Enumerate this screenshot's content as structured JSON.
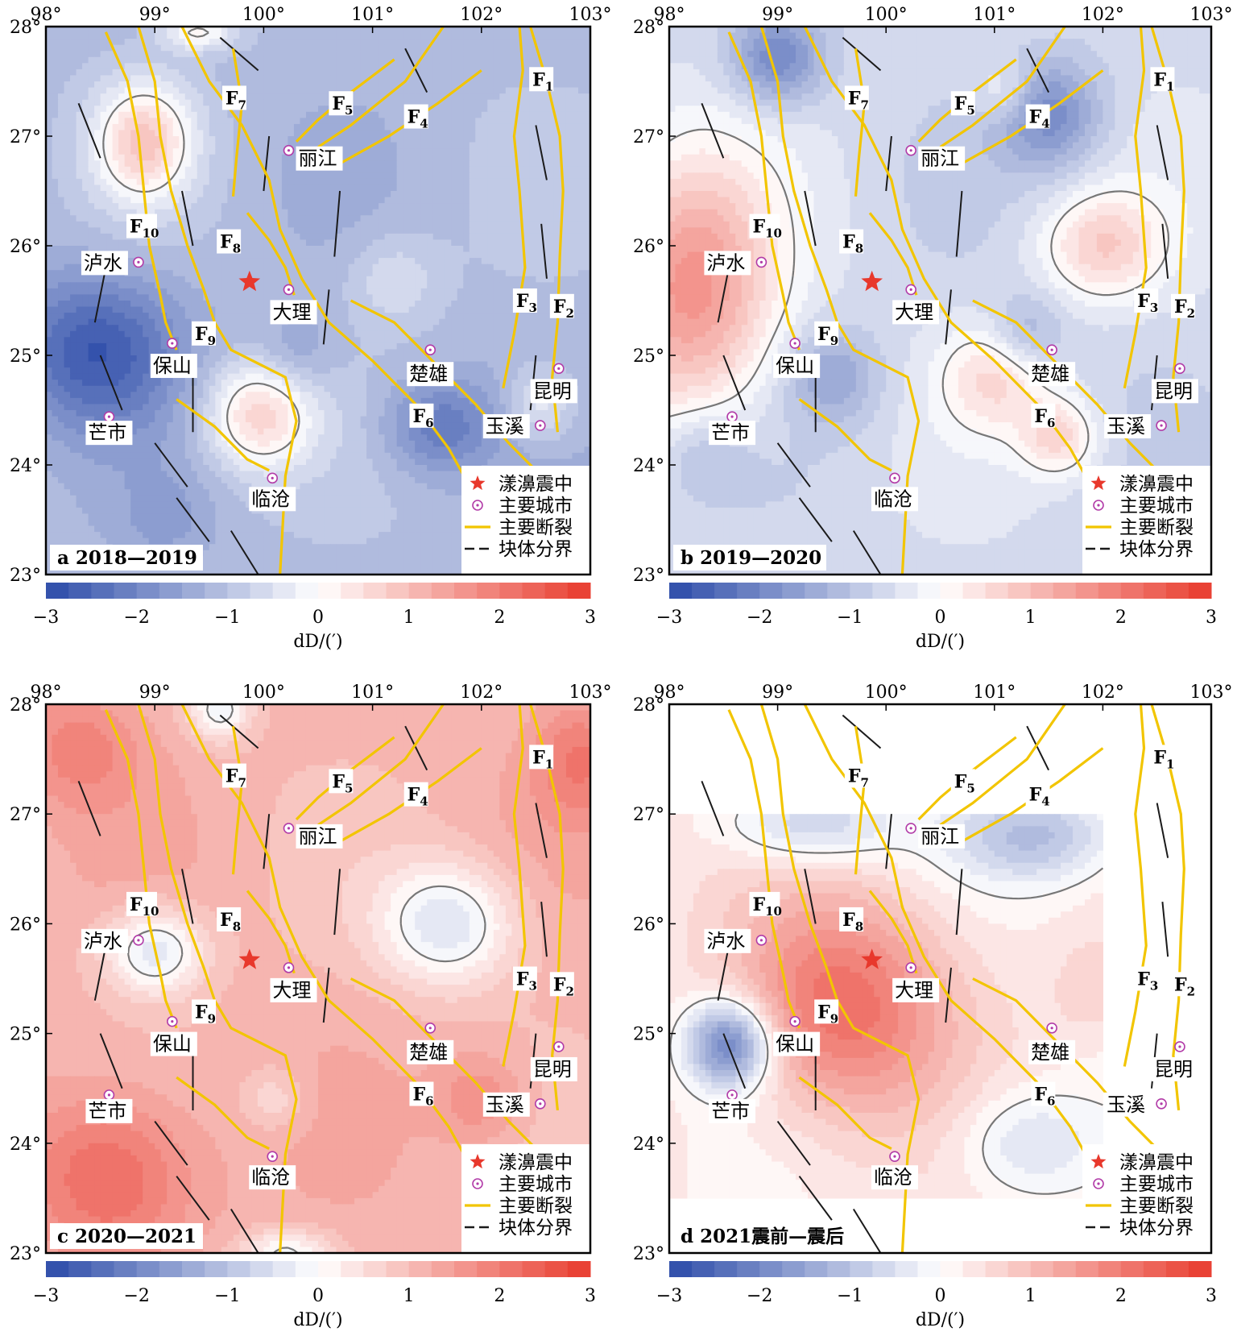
{
  "figure": {
    "x_ticks": [
      "98°",
      "99°",
      "100°",
      "101°",
      "102°",
      "103°"
    ],
    "y_ticks": [
      "28°",
      "27°",
      "26°",
      "25°",
      "24°",
      "23°"
    ],
    "lon_values": [
      98,
      99,
      100,
      101,
      102,
      103
    ],
    "lat_values": [
      28,
      27,
      26,
      25,
      24,
      23
    ],
    "colorbar": {
      "ticks": [
        "−3",
        "−2",
        "−1",
        "0",
        "1",
        "2",
        "3"
      ],
      "tick_values": [
        -3,
        -2,
        -1,
        0,
        1,
        2,
        3
      ],
      "title": "dD/(′)",
      "cmap_low": "#2b4aa8",
      "cmap_mid": "#ffffff",
      "cmap_high": "#e83a2c",
      "levels": 24
    },
    "legend": [
      {
        "symbol": "star",
        "label": "漾濞震中",
        "color": "#e8382c"
      },
      {
        "symbol": "city",
        "label": "主要城市",
        "color": "#b23ca8"
      },
      {
        "symbol": "fault",
        "label": "主要断裂",
        "color": "#f2c500"
      },
      {
        "symbol": "block",
        "label": "块体分界",
        "color": "#1a1a1a"
      }
    ],
    "cities": [
      {
        "name": "丽江",
        "lon": 100.23,
        "lat": 26.87
      },
      {
        "name": "大理",
        "lon": 100.23,
        "lat": 25.6
      },
      {
        "name": "楚雄",
        "lon": 101.53,
        "lat": 25.05
      },
      {
        "name": "昆明",
        "lon": 102.71,
        "lat": 24.88
      },
      {
        "name": "玉溪",
        "lon": 102.54,
        "lat": 24.36
      },
      {
        "name": "保山",
        "lon": 99.16,
        "lat": 25.11
      },
      {
        "name": "泸水",
        "lon": 98.85,
        "lat": 25.85
      },
      {
        "name": "芒市",
        "lon": 98.58,
        "lat": 24.44
      },
      {
        "name": "临沧",
        "lon": 100.08,
        "lat": 23.88
      }
    ],
    "faults": [
      {
        "label": "F",
        "sub": "1",
        "lon": 102.55,
        "lat": 27.52
      },
      {
        "label": "F",
        "sub": "2",
        "lon": 102.74,
        "lat": 25.45
      },
      {
        "label": "F",
        "sub": "3",
        "lon": 102.4,
        "lat": 25.5
      },
      {
        "label": "F",
        "sub": "4",
        "lon": 101.4,
        "lat": 27.18
      },
      {
        "label": "F",
        "sub": "5",
        "lon": 100.71,
        "lat": 27.3
      },
      {
        "label": "F",
        "sub": "6",
        "lon": 101.45,
        "lat": 24.45
      },
      {
        "label": "F",
        "sub": "7",
        "lon": 99.73,
        "lat": 27.35
      },
      {
        "label": "F",
        "sub": "8",
        "lon": 99.68,
        "lat": 26.04
      },
      {
        "label": "F",
        "sub": "9",
        "lon": 99.45,
        "lat": 25.2
      },
      {
        "label": "F",
        "sub": "10",
        "lon": 98.88,
        "lat": 26.18
      }
    ],
    "epicenter": {
      "lon": 99.87,
      "lat": 25.67
    }
  },
  "panels": [
    {
      "id": "a",
      "label": "a  2018—2019",
      "mask": null,
      "base": -1.1,
      "anomalies": [
        {
          "lon": 98.9,
          "lat": 26.95,
          "amp": 1.8,
          "sx": 0.32,
          "sy": 0.38
        },
        {
          "lon": 99.95,
          "lat": 24.45,
          "amp": 1.7,
          "sx": 0.35,
          "sy": 0.35
        },
        {
          "lon": 102.55,
          "lat": 24.55,
          "amp": 0.9,
          "sx": 0.22,
          "sy": 0.25
        },
        {
          "lon": 98.45,
          "lat": 25.05,
          "amp": -1.6,
          "sx": 0.55,
          "sy": 0.5
        },
        {
          "lon": 101.6,
          "lat": 24.35,
          "amp": -1.1,
          "sx": 0.35,
          "sy": 0.3
        },
        {
          "lon": 100.3,
          "lat": 25.0,
          "amp": -0.5,
          "sx": 0.25,
          "sy": 0.25
        },
        {
          "lon": 99.4,
          "lat": 27.95,
          "amp": 1.2,
          "sx": 0.25,
          "sy": 0.12
        },
        {
          "lon": 101.2,
          "lat": 25.7,
          "amp": 0.6,
          "sx": 0.3,
          "sy": 0.3
        },
        {
          "lon": 99.1,
          "lat": 23.5,
          "amp": -0.4,
          "sx": 0.3,
          "sy": 0.3
        }
      ]
    },
    {
      "id": "b",
      "label": "b  2019—2020",
      "mask": null,
      "base": -0.6,
      "anomalies": [
        {
          "lon": 98.2,
          "lat": 25.6,
          "amp": 2.2,
          "sx": 0.55,
          "sy": 0.85
        },
        {
          "lon": 102.0,
          "lat": 26.0,
          "amp": 1.3,
          "sx": 0.4,
          "sy": 0.35
        },
        {
          "lon": 101.0,
          "lat": 24.8,
          "amp": 1.1,
          "sx": 0.35,
          "sy": 0.35
        },
        {
          "lon": 101.6,
          "lat": 24.25,
          "amp": 1.2,
          "sx": 0.25,
          "sy": 0.25
        },
        {
          "lon": 101.1,
          "lat": 27.4,
          "amp": 0.7,
          "sx": 0.2,
          "sy": 0.2
        },
        {
          "lon": 99.0,
          "lat": 27.7,
          "amp": -1.4,
          "sx": 0.3,
          "sy": 0.3
        },
        {
          "lon": 101.5,
          "lat": 27.2,
          "amp": -1.3,
          "sx": 0.35,
          "sy": 0.35
        },
        {
          "lon": 99.5,
          "lat": 24.8,
          "amp": -0.9,
          "sx": 0.3,
          "sy": 0.3
        },
        {
          "lon": 101.3,
          "lat": 25.2,
          "amp": -0.8,
          "sx": 0.25,
          "sy": 0.25
        },
        {
          "lon": 98.3,
          "lat": 24.1,
          "amp": -0.6,
          "sx": 0.3,
          "sy": 0.3
        }
      ]
    },
    {
      "id": "c",
      "label": "c  2020—2021",
      "mask": null,
      "base": 1.1,
      "anomalies": [
        {
          "lon": 99.0,
          "lat": 25.75,
          "amp": -1.6,
          "sx": 0.33,
          "sy": 0.28
        },
        {
          "lon": 101.7,
          "lat": 26.0,
          "amp": -1.6,
          "sx": 0.45,
          "sy": 0.4
        },
        {
          "lon": 99.6,
          "lat": 27.95,
          "amp": -1.3,
          "sx": 0.2,
          "sy": 0.2
        },
        {
          "lon": 100.2,
          "lat": 23.0,
          "amp": -1.2,
          "sx": 0.3,
          "sy": 0.15
        },
        {
          "lon": 98.6,
          "lat": 23.7,
          "amp": 1.3,
          "sx": 0.55,
          "sy": 0.55
        },
        {
          "lon": 98.3,
          "lat": 27.6,
          "amp": 0.8,
          "sx": 0.4,
          "sy": 0.4
        },
        {
          "lon": 102.9,
          "lat": 27.5,
          "amp": 0.9,
          "sx": 0.3,
          "sy": 0.4
        },
        {
          "lon": 100.1,
          "lat": 24.4,
          "amp": -0.6,
          "sx": 0.2,
          "sy": 0.2
        },
        {
          "lon": 102.0,
          "lat": 24.4,
          "amp": 0.7,
          "sx": 0.3,
          "sy": 0.3
        }
      ]
    },
    {
      "id": "d",
      "label": "d  2021震前—震后",
      "mask": {
        "lon_min": 98.0,
        "lon_max": 102.0,
        "lat_min": 23.5,
        "lat_max": 27.0
      },
      "base": 0.3,
      "anomalies": [
        {
          "lon": 99.6,
          "lat": 25.25,
          "amp": 1.9,
          "sx": 0.7,
          "sy": 0.7
        },
        {
          "lon": 98.55,
          "lat": 24.9,
          "amp": -2.6,
          "sx": 0.28,
          "sy": 0.28
        },
        {
          "lon": 101.4,
          "lat": 26.8,
          "amp": -1.3,
          "sx": 0.55,
          "sy": 0.3
        },
        {
          "lon": 99.3,
          "lat": 26.9,
          "amp": -1.2,
          "sx": 0.55,
          "sy": 0.25
        },
        {
          "lon": 101.3,
          "lat": 24.0,
          "amp": -0.9,
          "sx": 0.45,
          "sy": 0.35
        },
        {
          "lon": 101.9,
          "lat": 25.4,
          "amp": 0.4,
          "sx": 0.25,
          "sy": 0.3
        }
      ]
    }
  ]
}
